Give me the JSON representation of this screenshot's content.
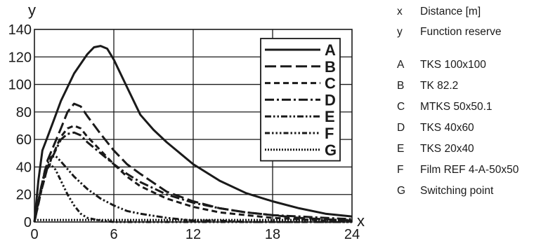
{
  "chart_data": {
    "type": "line",
    "xlabel": "x",
    "ylabel": "y",
    "xlim": [
      0,
      24
    ],
    "ylim": [
      0,
      140
    ],
    "x_ticks": [
      "0",
      "6",
      "12",
      "18",
      "24"
    ],
    "y_ticks": [
      "0",
      "20",
      "40",
      "60",
      "80",
      "100",
      "120",
      "140"
    ],
    "grid": true,
    "legend_position": "top-right",
    "series": [
      {
        "name": "A",
        "dash": "solid",
        "points": [
          [
            0,
            0
          ],
          [
            0.3,
            30
          ],
          [
            0.6,
            52
          ],
          [
            1,
            62
          ],
          [
            1.5,
            75
          ],
          [
            2,
            88
          ],
          [
            3,
            108
          ],
          [
            4,
            122
          ],
          [
            4.5,
            127
          ],
          [
            5,
            128
          ],
          [
            5.5,
            126
          ],
          [
            6,
            118
          ],
          [
            7,
            98
          ],
          [
            8,
            78
          ],
          [
            9,
            67
          ],
          [
            10,
            58
          ],
          [
            12,
            42
          ],
          [
            14,
            30
          ],
          [
            16,
            21
          ],
          [
            18,
            15
          ],
          [
            20,
            10
          ],
          [
            22,
            6
          ],
          [
            24,
            4
          ]
        ]
      },
      {
        "name": "B",
        "dash": "long-dash",
        "points": [
          [
            0,
            0
          ],
          [
            0.5,
            25
          ],
          [
            1,
            45
          ],
          [
            2,
            68
          ],
          [
            2.5,
            80
          ],
          [
            3,
            86
          ],
          [
            3.5,
            84
          ],
          [
            4,
            77
          ],
          [
            5,
            64
          ],
          [
            6,
            52
          ],
          [
            7,
            42
          ],
          [
            8,
            35
          ],
          [
            10,
            22
          ],
          [
            12,
            15
          ],
          [
            14,
            10
          ],
          [
            16,
            7
          ],
          [
            18,
            5
          ],
          [
            20,
            3
          ],
          [
            22,
            2
          ],
          [
            24,
            1
          ]
        ]
      },
      {
        "name": "C",
        "dash": "short-dash",
        "points": [
          [
            0,
            0
          ],
          [
            0.5,
            22
          ],
          [
            1,
            40
          ],
          [
            2,
            62
          ],
          [
            2.5,
            68
          ],
          [
            3,
            70
          ],
          [
            3.5,
            68
          ],
          [
            4,
            62
          ],
          [
            5,
            52
          ],
          [
            6,
            42
          ],
          [
            7,
            33
          ],
          [
            8,
            26
          ],
          [
            10,
            17
          ],
          [
            12,
            11
          ],
          [
            14,
            7
          ],
          [
            16,
            5
          ],
          [
            18,
            3
          ],
          [
            20,
            2
          ],
          [
            22,
            1
          ],
          [
            24,
            1
          ]
        ]
      },
      {
        "name": "D",
        "dash": "dash-dot",
        "points": [
          [
            0,
            0
          ],
          [
            0.5,
            22
          ],
          [
            1,
            40
          ],
          [
            2,
            60
          ],
          [
            2.5,
            64
          ],
          [
            3,
            65
          ],
          [
            3.5,
            63
          ],
          [
            4,
            58
          ],
          [
            5,
            50
          ],
          [
            6,
            42
          ],
          [
            7,
            35
          ],
          [
            8,
            29
          ],
          [
            10,
            20
          ],
          [
            12,
            14
          ],
          [
            14,
            10
          ],
          [
            16,
            7
          ],
          [
            18,
            5
          ],
          [
            20,
            4
          ],
          [
            22,
            3
          ],
          [
            24,
            2
          ]
        ]
      },
      {
        "name": "E",
        "dash": "dash-dot-dot",
        "points": [
          [
            0,
            0
          ],
          [
            0.4,
            20
          ],
          [
            0.8,
            38
          ],
          [
            1.2,
            47
          ],
          [
            1.6,
            48
          ],
          [
            2,
            44
          ],
          [
            3,
            33
          ],
          [
            4,
            24
          ],
          [
            5,
            17
          ],
          [
            6,
            12
          ],
          [
            7,
            8
          ],
          [
            8,
            6
          ],
          [
            10,
            3
          ],
          [
            12,
            1
          ],
          [
            14,
            1
          ],
          [
            16,
            0
          ],
          [
            24,
            0
          ]
        ]
      },
      {
        "name": "F",
        "dash": "dash-dot-dot-dot",
        "points": [
          [
            0,
            0
          ],
          [
            0.4,
            20
          ],
          [
            0.8,
            36
          ],
          [
            1.2,
            42
          ],
          [
            1.6,
            38
          ],
          [
            2,
            30
          ],
          [
            2.5,
            20
          ],
          [
            3,
            12
          ],
          [
            3.5,
            6
          ],
          [
            4,
            3
          ],
          [
            5,
            1
          ],
          [
            6,
            0
          ],
          [
            24,
            0
          ]
        ]
      },
      {
        "name": "G",
        "dash": "dotted",
        "points": [
          [
            0,
            1.5
          ],
          [
            24,
            1.5
          ]
        ]
      }
    ]
  },
  "key": {
    "items": [
      {
        "code": "x",
        "label": "Distance [m]"
      },
      {
        "code": "y",
        "label": "Function reserve"
      },
      {
        "code": "A",
        "label": "TKS 100x100"
      },
      {
        "code": "B",
        "label": "TK 82.2"
      },
      {
        "code": "C",
        "label": "MTKS 50x50.1"
      },
      {
        "code": "D",
        "label": "TKS 40x60"
      },
      {
        "code": "E",
        "label": "TKS 20x40"
      },
      {
        "code": "F",
        "label": "Film REF 4-A-50x50"
      },
      {
        "code": "G",
        "label": "Switching point"
      }
    ]
  }
}
